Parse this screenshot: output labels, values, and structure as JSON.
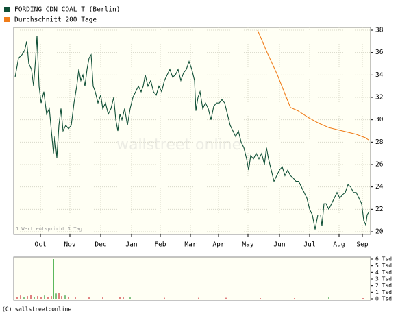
{
  "chart_data": [
    {
      "type": "line",
      "legend": [
        "FORDING CDN COAL T (Berlin)",
        "Durchschnitt 200 Tage"
      ],
      "note": "1 Wert entspricht 1 Tag",
      "watermark": "wallstreet online",
      "grid": true,
      "xlim": [
        0,
        518
      ],
      "xticks": [
        {
          "value": 37,
          "label": "Oct"
        },
        {
          "value": 80,
          "label": "Nov"
        },
        {
          "value": 125,
          "label": "Dec"
        },
        {
          "value": 170,
          "label": "Jan"
        },
        {
          "value": 212,
          "label": "Feb"
        },
        {
          "value": 256,
          "label": "Mar"
        },
        {
          "value": 297,
          "label": "Apr"
        },
        {
          "value": 340,
          "label": "May"
        },
        {
          "value": 386,
          "label": "Jun"
        },
        {
          "value": 430,
          "label": "Jul"
        },
        {
          "value": 473,
          "label": "Aug"
        },
        {
          "value": 507,
          "label": "Sep"
        }
      ],
      "ylim": [
        20,
        38
      ],
      "yticks": [
        20,
        22,
        24,
        26,
        28,
        30,
        32,
        34,
        36,
        38
      ],
      "series": [
        {
          "name": "FORDING CDN COAL T (Berlin)",
          "color": "#0f4f36",
          "x": [
            0,
            5,
            10,
            14,
            17,
            20,
            24,
            27,
            30,
            32,
            35,
            38,
            42,
            46,
            50,
            53,
            56,
            58,
            61,
            64,
            67,
            70,
            74,
            78,
            82,
            86,
            90,
            93,
            96,
            99,
            102,
            105,
            108,
            111,
            114,
            117,
            121,
            125,
            128,
            132,
            136,
            140,
            144,
            147,
            150,
            153,
            156,
            160,
            164,
            168,
            172,
            176,
            180,
            184,
            187,
            190,
            194,
            198,
            202,
            206,
            210,
            214,
            218,
            222,
            226,
            230,
            234,
            238,
            242,
            246,
            250,
            254,
            258,
            262,
            264,
            267,
            270,
            274,
            278,
            282,
            286,
            290,
            294,
            298,
            302,
            306,
            310,
            314,
            318,
            322,
            326,
            330,
            334,
            338,
            341,
            344,
            348,
            352,
            356,
            360,
            364,
            367,
            370,
            374,
            378,
            382,
            386,
            390,
            394,
            398,
            402,
            406,
            410,
            414,
            418,
            422,
            426,
            430,
            434,
            438,
            442,
            446,
            448,
            451,
            454,
            458,
            462,
            466,
            470,
            474,
            478,
            482,
            486,
            490,
            494,
            498,
            502,
            506,
            509,
            512,
            514,
            517
          ],
          "values": [
            33.8,
            35.5,
            35.8,
            36.2,
            37.0,
            35.0,
            34.5,
            33.0,
            35.5,
            37.5,
            33.0,
            31.5,
            32.5,
            30.5,
            31.0,
            29.0,
            27.0,
            28.5,
            26.6,
            29.5,
            31.0,
            29.0,
            29.5,
            29.2,
            29.5,
            31.5,
            33.0,
            34.5,
            33.5,
            34.0,
            33.0,
            34.5,
            35.5,
            35.8,
            33.0,
            32.5,
            31.5,
            32.2,
            31.0,
            31.5,
            30.5,
            31.0,
            32.0,
            30.0,
            29.0,
            30.5,
            30.0,
            31.0,
            29.5,
            31.0,
            32.0,
            32.5,
            33.0,
            32.5,
            33.0,
            34.0,
            33.0,
            33.5,
            32.5,
            32.2,
            33.0,
            32.5,
            33.5,
            34.0,
            34.5,
            33.8,
            34.0,
            34.5,
            33.5,
            34.2,
            34.5,
            35.2,
            34.5,
            33.5,
            30.8,
            32.0,
            32.5,
            31.0,
            31.5,
            31.0,
            30.0,
            31.2,
            31.5,
            31.5,
            31.8,
            31.5,
            30.5,
            29.5,
            29.0,
            28.5,
            29.0,
            28.0,
            27.5,
            26.5,
            25.5,
            26.8,
            26.5,
            27.0,
            26.5,
            27.0,
            26.0,
            27.5,
            26.5,
            25.5,
            24.5,
            25.0,
            25.5,
            25.8,
            25.0,
            25.5,
            25.0,
            24.8,
            24.5,
            24.5,
            24.0,
            23.5,
            23.0,
            22.0,
            21.5,
            20.2,
            21.5,
            21.5,
            20.5,
            22.5,
            22.5,
            22.0,
            22.5,
            23.0,
            23.5,
            23.0,
            23.3,
            23.5,
            24.2,
            24.0,
            23.5,
            23.5,
            23.0,
            22.5,
            21.0,
            20.6,
            21.5,
            21.8
          ]
        },
        {
          "name": "Durchschnitt 200 Tage",
          "color": "#f07d1a",
          "x": [
            354,
            368,
            383,
            396,
            402,
            413,
            428,
            443,
            458,
            478,
            498,
            511,
            516
          ],
          "values": [
            38.0,
            36.0,
            34.0,
            32.0,
            31.1,
            30.8,
            30.2,
            29.7,
            29.3,
            29.0,
            28.7,
            28.4,
            28.2
          ]
        }
      ]
    },
    {
      "type": "bar",
      "xlim": [
        0,
        518
      ],
      "ylim": [
        0,
        6
      ],
      "yticks": [
        {
          "value": 0,
          "label": "0 Tsd"
        },
        {
          "value": 1,
          "label": "1 Tsd"
        },
        {
          "value": 2,
          "label": "2 Tsd"
        },
        {
          "value": 3,
          "label": "3 Tsd"
        },
        {
          "value": 4,
          "label": "4 Tsd"
        },
        {
          "value": 5,
          "label": "5 Tsd"
        },
        {
          "value": 6,
          "label": "6 Tsd"
        }
      ],
      "x": [
        3,
        8,
        13,
        18,
        23,
        28,
        33,
        38,
        43,
        48,
        53,
        56,
        60,
        64,
        68,
        73,
        78,
        88,
        108,
        128,
        153,
        158,
        168,
        218,
        268,
        308,
        358,
        408,
        458,
        508
      ],
      "values": [
        0.3,
        0.5,
        0.2,
        0.4,
        0.6,
        0.3,
        0.4,
        0.3,
        0.5,
        0.3,
        0.4,
        6.0,
        0.8,
        0.9,
        0.4,
        0.5,
        0.3,
        0.2,
        0.2,
        0.2,
        0.3,
        0.2,
        0.2,
        0.15,
        0.15,
        0.15,
        0.1,
        0.1,
        0.2,
        0.1
      ],
      "colors": [
        "#e08080",
        "#e08080",
        "#80c080",
        "#e08080",
        "#e08080",
        "#80c080",
        "#e08080",
        "#e08080",
        "#80c080",
        "#e08080",
        "#e08080",
        "#5cb85c",
        "#80c080",
        "#e08080",
        "#e08080",
        "#80c080",
        "#e08080",
        "#e08080",
        "#e08080",
        "#e08080",
        "#e08080",
        "#e08080",
        "#80c080",
        "#e08080",
        "#e08080",
        "#e08080",
        "#e08080",
        "#e08080",
        "#80c080",
        "#e08080"
      ]
    },
    {
      "copyright": "(C) wallstreet:online"
    }
  ]
}
